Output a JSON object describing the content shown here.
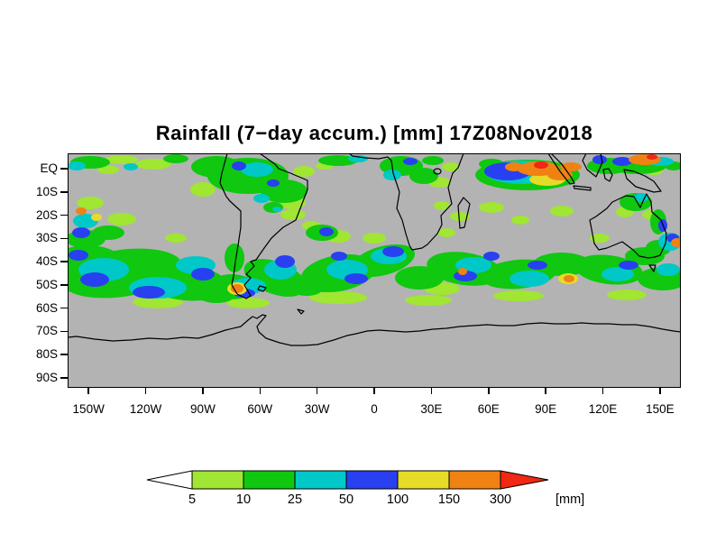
{
  "title": "Rainfall (7−day accum.) [mm] 17Z08Nov2018",
  "axes": {
    "lat_labels": [
      "EQ",
      "10S",
      "20S",
      "30S",
      "40S",
      "50S",
      "60S",
      "70S",
      "80S",
      "90S"
    ],
    "lon_labels": [
      "150W",
      "120W",
      "90W",
      "60W",
      "30W",
      "0",
      "30E",
      "60E",
      "90E",
      "120E",
      "150E"
    ]
  },
  "colorbar": {
    "levels": [
      "5",
      "10",
      "25",
      "50",
      "100",
      "150",
      "300"
    ],
    "segment_colors": [
      "#a0e632",
      "#0fc80f",
      "#00c8c8",
      "#2840f0",
      "#e6dc28",
      "#f08214"
    ],
    "left_arrow_color": "#ffffff",
    "right_arrow_color": "#f02814",
    "unit_label": "[mm]"
  },
  "map": {
    "background_color": "#b3b3b3",
    "palette": {
      "1": "#a0e632",
      "2": "#0fc80f",
      "3": "#00c8c8",
      "4": "#2840f0",
      "5": "#e6dc28",
      "6": "#f08214",
      "7": "#f02814"
    },
    "rain_blobs": [
      [
        25,
        10,
        22,
        7,
        2
      ],
      [
        60,
        7,
        18,
        5,
        1
      ],
      [
        95,
        12,
        20,
        6,
        1
      ],
      [
        120,
        6,
        14,
        5,
        2
      ],
      [
        45,
        18,
        12,
        5,
        1
      ],
      [
        10,
        14,
        10,
        5,
        3
      ],
      [
        70,
        15,
        8,
        4,
        3
      ],
      [
        200,
        25,
        45,
        20,
        2
      ],
      [
        165,
        15,
        28,
        12,
        2
      ],
      [
        240,
        42,
        26,
        13,
        2
      ],
      [
        210,
        18,
        18,
        8,
        3
      ],
      [
        190,
        14,
        8,
        5,
        4
      ],
      [
        228,
        33,
        7,
        4,
        4
      ],
      [
        150,
        40,
        14,
        8,
        1
      ],
      [
        262,
        20,
        12,
        6,
        1
      ],
      [
        250,
        55,
        14,
        7,
        1
      ],
      [
        175,
        35,
        10,
        6,
        1
      ],
      [
        215,
        50,
        9,
        5,
        3
      ],
      [
        300,
        8,
        22,
        6,
        2
      ],
      [
        322,
        6,
        11,
        4,
        3
      ],
      [
        285,
        14,
        10,
        4,
        1
      ],
      [
        370,
        14,
        24,
        11,
        2
      ],
      [
        395,
        25,
        16,
        9,
        2
      ],
      [
        380,
        9,
        8,
        4,
        4
      ],
      [
        360,
        24,
        10,
        6,
        3
      ],
      [
        412,
        32,
        12,
        6,
        1
      ],
      [
        425,
        15,
        10,
        5,
        1
      ],
      [
        405,
        8,
        12,
        5,
        2
      ],
      [
        510,
        24,
        58,
        17,
        2
      ],
      [
        505,
        21,
        42,
        13,
        3
      ],
      [
        488,
        20,
        26,
        10,
        4
      ],
      [
        522,
        17,
        24,
        8,
        6
      ],
      [
        495,
        15,
        10,
        5,
        6
      ],
      [
        546,
        24,
        14,
        6,
        6
      ],
      [
        532,
        29,
        20,
        7,
        5
      ],
      [
        558,
        15,
        12,
        5,
        6
      ],
      [
        500,
        33,
        18,
        6,
        1
      ],
      [
        470,
        12,
        14,
        6,
        2
      ],
      [
        525,
        13,
        8,
        4,
        7
      ],
      [
        600,
        14,
        24,
        9,
        2
      ],
      [
        590,
        7,
        8,
        5,
        4
      ],
      [
        632,
        14,
        32,
        9,
        2
      ],
      [
        640,
        7,
        18,
        6,
        6
      ],
      [
        648,
        4,
        6,
        3,
        7
      ],
      [
        615,
        9,
        11,
        5,
        4
      ],
      [
        658,
        9,
        14,
        5,
        3
      ],
      [
        672,
        14,
        10,
        5,
        2
      ],
      [
        650,
        20,
        10,
        4,
        1
      ],
      [
        630,
        54,
        18,
        10,
        2
      ],
      [
        636,
        49,
        8,
        5,
        3
      ],
      [
        655,
        76,
        9,
        14,
        2
      ],
      [
        660,
        80,
        5,
        7,
        4
      ],
      [
        618,
        65,
        10,
        6,
        1
      ],
      [
        645,
        68,
        8,
        5,
        1
      ],
      [
        25,
        55,
        15,
        7,
        1
      ],
      [
        60,
        73,
        16,
        7,
        1
      ],
      [
        45,
        88,
        18,
        8,
        2
      ],
      [
        20,
        95,
        22,
        10,
        2
      ],
      [
        20,
        75,
        14,
        8,
        3
      ],
      [
        15,
        88,
        10,
        6,
        4
      ],
      [
        15,
        64,
        6,
        4,
        6
      ],
      [
        32,
        71,
        6,
        4,
        5
      ],
      [
        120,
        94,
        12,
        5,
        1
      ],
      [
        250,
        68,
        14,
        6,
        1
      ],
      [
        228,
        60,
        11,
        6,
        2
      ],
      [
        232,
        62,
        5,
        3,
        3
      ],
      [
        340,
        94,
        13,
        6,
        1
      ],
      [
        420,
        88,
        10,
        5,
        1
      ],
      [
        470,
        60,
        14,
        6,
        1
      ],
      [
        435,
        70,
        11,
        5,
        1
      ],
      [
        415,
        58,
        9,
        5,
        1
      ],
      [
        548,
        64,
        13,
        6,
        1
      ],
      [
        502,
        74,
        10,
        5,
        1
      ],
      [
        590,
        94,
        11,
        5,
        1
      ],
      [
        282,
        88,
        18,
        9,
        2
      ],
      [
        287,
        87,
        8,
        5,
        4
      ],
      [
        300,
        92,
        14,
        7,
        1
      ],
      [
        270,
        80,
        10,
        5,
        1
      ],
      [
        60,
        133,
        68,
        26,
        2,
        -8
      ],
      [
        22,
        120,
        38,
        18,
        2
      ],
      [
        130,
        143,
        48,
        20,
        2,
        6
      ],
      [
        40,
        129,
        28,
        13,
        3
      ],
      [
        100,
        149,
        32,
        12,
        3
      ],
      [
        142,
        124,
        22,
        10,
        3
      ],
      [
        30,
        140,
        16,
        8,
        4
      ],
      [
        90,
        154,
        18,
        7,
        4
      ],
      [
        150,
        134,
        13,
        7,
        4
      ],
      [
        12,
        113,
        11,
        6,
        4
      ],
      [
        100,
        165,
        28,
        7,
        1
      ],
      [
        165,
        158,
        20,
        8,
        2
      ],
      [
        185,
        116,
        11,
        16,
        2
      ],
      [
        182,
        148,
        26,
        14,
        2
      ],
      [
        200,
        147,
        20,
        9,
        3
      ],
      [
        196,
        155,
        12,
        5,
        4
      ],
      [
        188,
        150,
        11,
        7,
        5
      ],
      [
        188,
        150,
        7,
        5,
        6
      ],
      [
        230,
        138,
        36,
        18,
        2,
        20
      ],
      [
        236,
        129,
        18,
        11,
        3
      ],
      [
        241,
        120,
        11,
        7,
        4
      ],
      [
        300,
        133,
        42,
        20,
        2,
        -10
      ],
      [
        310,
        129,
        23,
        11,
        3
      ],
      [
        320,
        139,
        13,
        6,
        4
      ],
      [
        301,
        114,
        9,
        5,
        4
      ],
      [
        350,
        119,
        36,
        16,
        2,
        -15
      ],
      [
        356,
        114,
        20,
        9,
        3
      ],
      [
        361,
        109,
        12,
        6,
        4
      ],
      [
        390,
        138,
        27,
        13,
        2
      ],
      [
        300,
        160,
        32,
        7,
        1
      ],
      [
        265,
        150,
        18,
        8,
        2
      ],
      [
        440,
        128,
        42,
        18,
        2,
        8
      ],
      [
        450,
        124,
        20,
        9,
        3
      ],
      [
        441,
        136,
        13,
        6,
        4
      ],
      [
        438,
        131,
        5,
        4,
        6
      ],
      [
        500,
        134,
        42,
        16,
        2,
        -5
      ],
      [
        512,
        139,
        22,
        9,
        3
      ],
      [
        521,
        124,
        11,
        5,
        4
      ],
      [
        470,
        114,
        9,
        5,
        4
      ],
      [
        548,
        123,
        32,
        13,
        2
      ],
      [
        555,
        139,
        11,
        6,
        5
      ],
      [
        556,
        139,
        6,
        4,
        6
      ],
      [
        500,
        158,
        28,
        6,
        1
      ],
      [
        415,
        150,
        20,
        7,
        1
      ],
      [
        600,
        129,
        38,
        16,
        2,
        7
      ],
      [
        610,
        134,
        18,
        8,
        3
      ],
      [
        622,
        124,
        11,
        5,
        4
      ],
      [
        660,
        139,
        28,
        13,
        2
      ],
      [
        666,
        129,
        13,
        7,
        3
      ],
      [
        640,
        114,
        22,
        10,
        2
      ],
      [
        620,
        157,
        22,
        6,
        1
      ],
      [
        655,
        105,
        14,
        9,
        2
      ],
      [
        668,
        98,
        13,
        10,
        3
      ],
      [
        671,
        94,
        7,
        5,
        4
      ],
      [
        676,
        99,
        7,
        5,
        6
      ],
      [
        200,
        166,
        24,
        6,
        1
      ],
      [
        400,
        163,
        26,
        6,
        1
      ]
    ]
  },
  "chart_data": {
    "type": "heatmap",
    "title": "Rainfall (7−day accum.) [mm] 17Z08Nov2018",
    "variable": "Rainfall (7-day accumulation)",
    "unit": "mm",
    "timestamp": "17Z08Nov2018",
    "lat_ticks": [
      "EQ",
      "10S",
      "20S",
      "30S",
      "40S",
      "50S",
      "60S",
      "70S",
      "80S",
      "90S"
    ],
    "lon_ticks": [
      "150W",
      "120W",
      "90W",
      "60W",
      "30W",
      "0",
      "30E",
      "60E",
      "90E",
      "120E",
      "150E"
    ],
    "color_levels_mm": [
      5,
      10,
      25,
      50,
      100,
      150,
      300
    ],
    "color_scale": [
      "#a0e632",
      "#0fc80f",
      "#00c8c8",
      "#2840f0",
      "#e6dc28",
      "#f08214",
      "#f02814"
    ],
    "no_data_color": "#b3b3b3",
    "legend_position": "bottom"
  }
}
